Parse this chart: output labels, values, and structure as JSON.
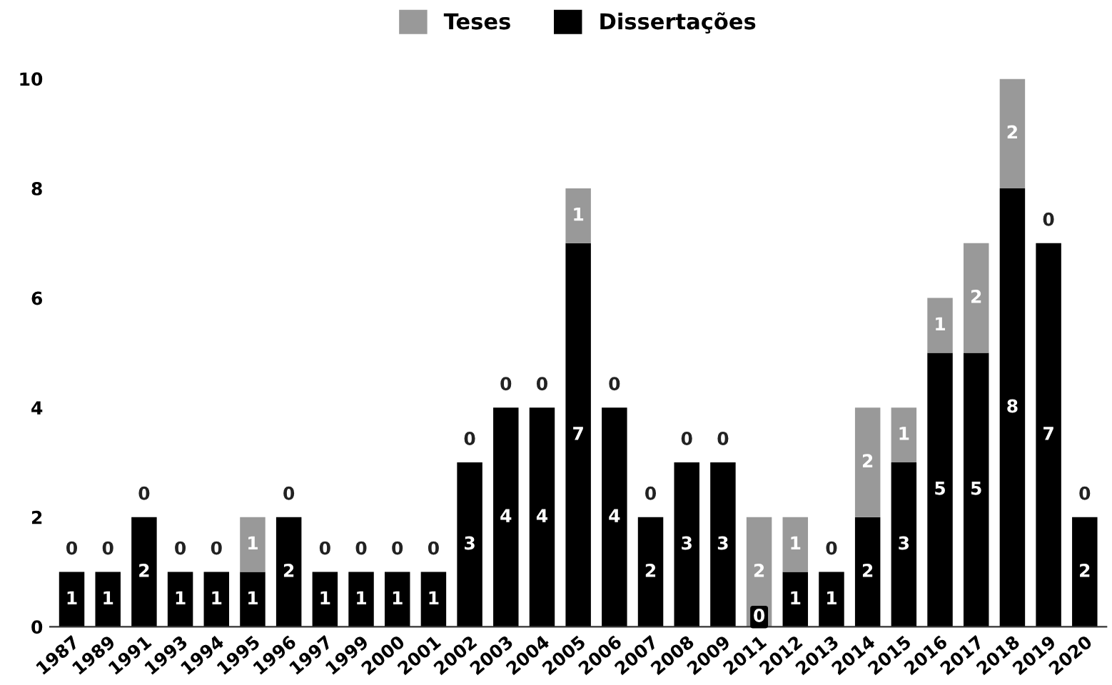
{
  "chart_data": {
    "type": "bar",
    "stacked": true,
    "categories": [
      "1987",
      "1989",
      "1991",
      "1993",
      "1994",
      "1995",
      "1996",
      "1997",
      "1999",
      "2000",
      "2001",
      "2002",
      "2003",
      "2004",
      "2005",
      "2006",
      "2007",
      "2008",
      "2009",
      "2011",
      "2012",
      "2013",
      "2014",
      "2015",
      "2016",
      "2017",
      "2018",
      "2019",
      "2020"
    ],
    "series": [
      {
        "name": "Dissertações",
        "color": "#000000",
        "values": [
          1,
          1,
          2,
          1,
          1,
          1,
          2,
          1,
          1,
          1,
          1,
          3,
          4,
          4,
          7,
          4,
          2,
          3,
          3,
          0,
          1,
          1,
          2,
          3,
          5,
          5,
          8,
          7,
          2
        ],
        "value_labels": [
          "1",
          "1",
          "2",
          "1",
          "1",
          "1",
          "2",
          "1",
          "1",
          "1",
          "1",
          "3",
          "4",
          "4",
          "7",
          "4",
          "2",
          "3",
          "3",
          null,
          "1",
          "1",
          "2",
          "3",
          "5",
          "5",
          "8",
          "7",
          "2"
        ]
      },
      {
        "name": "Teses",
        "color": "#999999",
        "values": [
          0,
          0,
          0,
          0,
          0,
          1,
          0,
          0,
          0,
          0,
          0,
          0,
          0,
          0,
          1,
          0,
          0,
          0,
          0,
          2,
          1,
          0,
          2,
          1,
          1,
          2,
          2,
          0,
          0
        ],
        "value_labels": [
          "0",
          "0",
          "0",
          "0",
          "0",
          "1",
          "0",
          "0",
          "0",
          "0",
          "0",
          "0",
          "0",
          "0",
          "1",
          "0",
          "0",
          "0",
          "0",
          "2",
          "1",
          "0",
          "2",
          "1",
          "1",
          "2",
          "2",
          "0",
          "0"
        ]
      }
    ],
    "annotations": [
      {
        "text": "0",
        "x": "2011",
        "y": 0
      }
    ],
    "ylim": [
      0,
      10
    ],
    "yticks": [
      0,
      2,
      4,
      6,
      8,
      10
    ],
    "grid": false,
    "legend": "top"
  }
}
